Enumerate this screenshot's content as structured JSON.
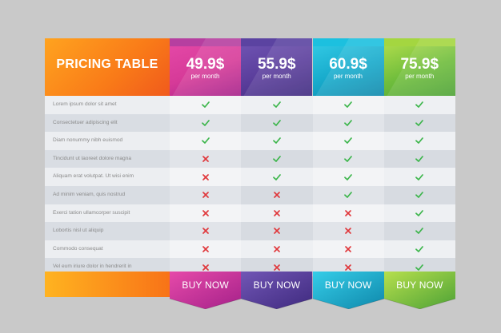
{
  "title": "PRICING TABLE",
  "plans": [
    {
      "price": "49.9$",
      "period": "per month",
      "button": "BUY NOW",
      "colors": {
        "top": "#b63fa0",
        "main": "#d63a98",
        "dark": "#a5218a",
        "accent": "#e64aa9"
      }
    },
    {
      "price": "55.9$",
      "period": "per month",
      "button": "BUY NOW",
      "colors": {
        "top": "#5b43a1",
        "main": "#5a3d9b",
        "dark": "#3f2a7f",
        "accent": "#7156b5"
      }
    },
    {
      "price": "60.9$",
      "period": "per month",
      "button": "BUY NOW",
      "colors": {
        "top": "#1cc0df",
        "main": "#17aacb",
        "dark": "#0f88ab",
        "accent": "#35cde8"
      }
    },
    {
      "price": "75.9$",
      "period": "per month",
      "button": "BUY NOW",
      "colors": {
        "top": "#a4d640",
        "main": "#6fbd3c",
        "dark": "#4da236",
        "accent": "#b6df4d"
      }
    }
  ],
  "features": [
    {
      "label": "Lorem ipsum dolor sit amet",
      "marks": [
        true,
        true,
        true,
        true
      ]
    },
    {
      "label": "Consectetuer adipiscing elit",
      "marks": [
        true,
        true,
        true,
        true
      ]
    },
    {
      "label": "Diam nonummy nibh euismod",
      "marks": [
        true,
        true,
        true,
        true
      ]
    },
    {
      "label": "Tincidunt ut laoreet dolore magna",
      "marks": [
        false,
        true,
        true,
        true
      ]
    },
    {
      "label": "Aliquam erat volutpat. Ut wisi enim",
      "marks": [
        false,
        true,
        true,
        true
      ]
    },
    {
      "label": "Ad minim veniam, quis nostrud",
      "marks": [
        false,
        false,
        true,
        true
      ]
    },
    {
      "label": "Exerci tation ullamcorper suscipit",
      "marks": [
        false,
        false,
        false,
        true
      ]
    },
    {
      "label": "Lobortis nisl ut aliquip",
      "marks": [
        false,
        false,
        false,
        true
      ]
    },
    {
      "label": "Commodo consequat",
      "marks": [
        false,
        false,
        false,
        true
      ]
    },
    {
      "label": "Vel eum iriure dolor in hendrerit in",
      "marks": [
        false,
        false,
        false,
        true
      ]
    }
  ],
  "icons": {
    "yes": "check-icon",
    "no": "cross-icon"
  },
  "mark_colors": {
    "yes": "#3bb54a",
    "no": "#e0383c"
  }
}
